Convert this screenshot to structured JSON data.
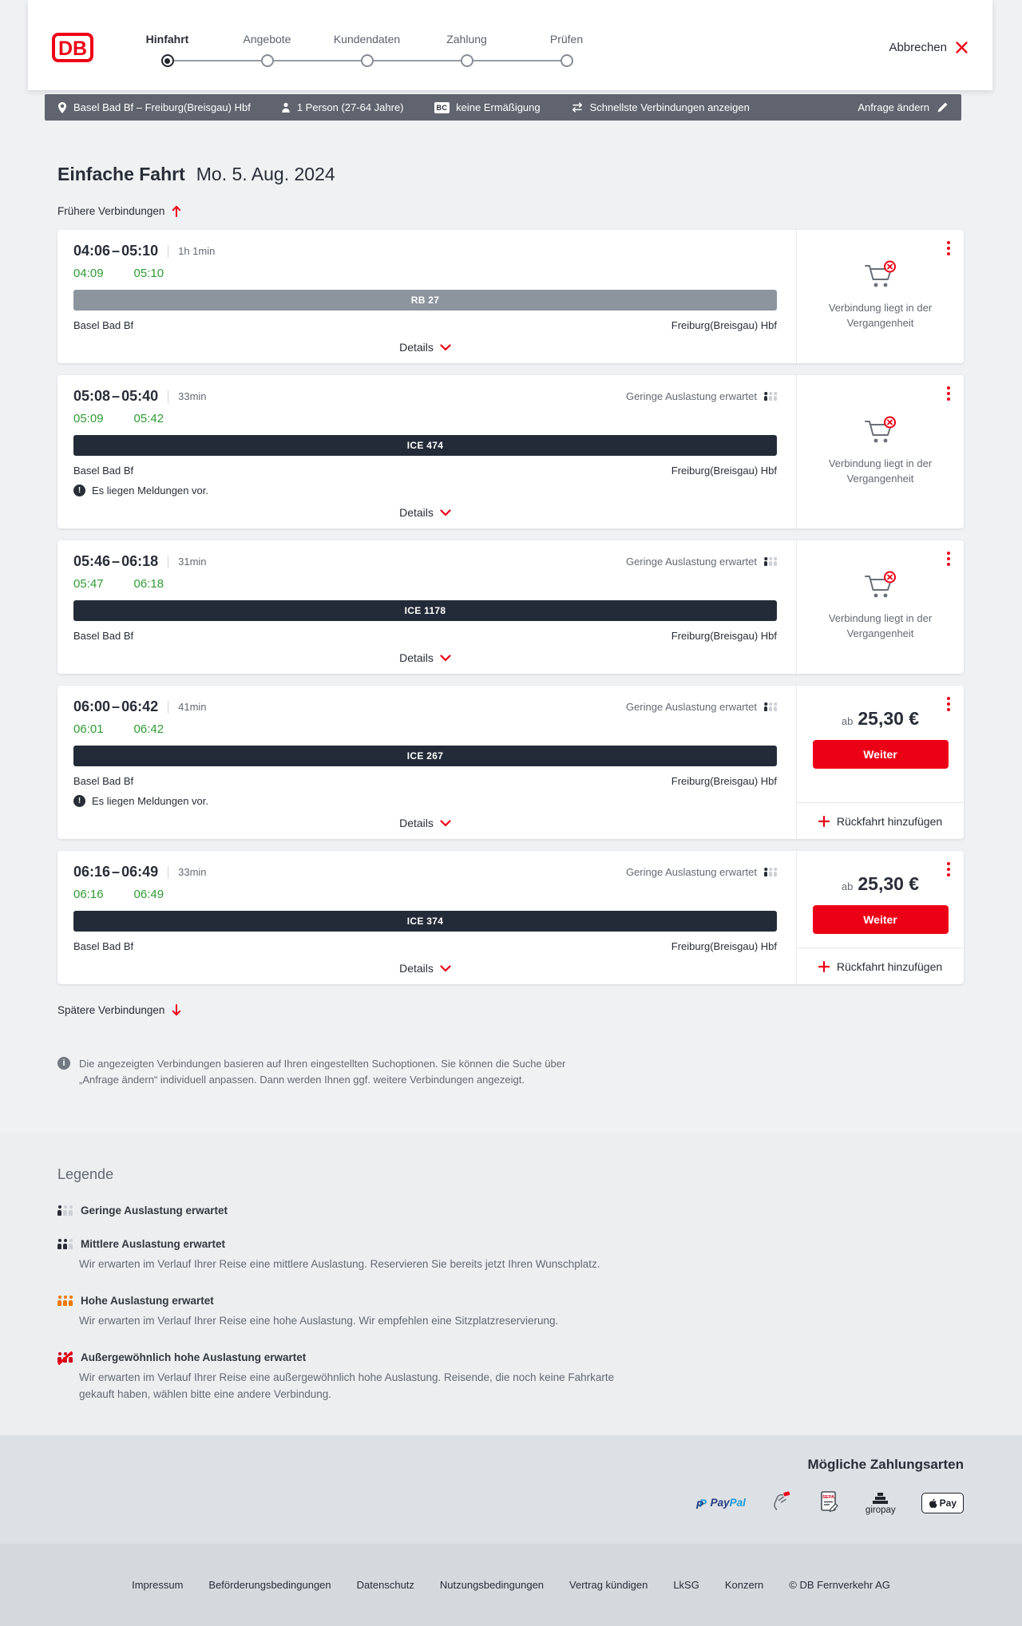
{
  "colors": {
    "brand_red": "#ec0016",
    "dark_text": "#282d37",
    "muted_text": "#646973",
    "realtime_green": "#2f9b33",
    "trip_bar_gray": "#60646e",
    "regional_train_badge": "#8c949e",
    "ice_train_badge": "#242b38",
    "occupancy_orange": "#f07800"
  },
  "icons": {
    "db-logo": "DB",
    "close": "✕",
    "location-pin": "📍",
    "traveler": "👤",
    "bahncard": "BC",
    "swap-arrows": "⇄",
    "edit-pencil": "✎",
    "arrow-up": "↑",
    "arrow-down": "↓",
    "chevron-down": "⌄",
    "kebab-menu": "⋮",
    "cart-crossed": "🛒✕",
    "warning": "!",
    "info": "i",
    "plus": "+"
  },
  "header": {
    "logo_text": "DB",
    "cancel_label": "Abbrechen",
    "steps": [
      {
        "label": "Hinfahrt",
        "active": true
      },
      {
        "label": "Angebote",
        "active": false
      },
      {
        "label": "Kundendaten",
        "active": false
      },
      {
        "label": "Zahlung",
        "active": false
      },
      {
        "label": "Prüfen",
        "active": false
      }
    ]
  },
  "trip_bar": {
    "route": "Basel Bad Bf – Freiburg(Breisgau) Hbf",
    "passengers": "1 Person (27-64 Jahre)",
    "bahncard_badge": "BC",
    "discount": "keine Ermäßigung",
    "speed": "Schnellste Verbindungen anzeigen",
    "edit": "Anfrage ändern"
  },
  "results": {
    "title": "Einfache Fahrt",
    "date": "Mo. 5. Aug. 2024",
    "earlier_label": "Frühere Verbindungen",
    "later_label": "Spätere Verbindungen",
    "times_separator": "–",
    "details_label": "Details",
    "weiter_label": "Weiter",
    "return_label": "Rückfahrt hinzufügen",
    "connections": [
      {
        "departure": "04:06",
        "arrival": "05:10",
        "duration": "1h 1min",
        "realtime_departure": "04:09",
        "realtime_arrival": "05:10",
        "train": "RB 27",
        "category": "RB",
        "origin": "Basel Bad Bf",
        "destination": "Freiburg(Breisgau) Hbf",
        "occupancy_label": null,
        "messages_note": null,
        "status_note": "Verbindung liegt in der Vergangenheit",
        "price": null
      },
      {
        "departure": "05:08",
        "arrival": "05:40",
        "duration": "33min",
        "realtime_departure": "05:09",
        "realtime_arrival": "05:42",
        "train": "ICE 474",
        "category": "ICE",
        "origin": "Basel Bad Bf",
        "destination": "Freiburg(Breisgau) Hbf",
        "occupancy_label": "Geringe Auslastung erwartet",
        "messages_note": "Es liegen Meldungen vor.",
        "status_note": "Verbindung liegt in der Vergangenheit",
        "price": null
      },
      {
        "departure": "05:46",
        "arrival": "06:18",
        "duration": "31min",
        "realtime_departure": "05:47",
        "realtime_arrival": "06:18",
        "train": "ICE 1178",
        "category": "ICE",
        "origin": "Basel Bad Bf",
        "destination": "Freiburg(Breisgau) Hbf",
        "occupancy_label": "Geringe Auslastung erwartet",
        "messages_note": null,
        "status_note": "Verbindung liegt in der Vergangenheit",
        "price": null
      },
      {
        "departure": "06:00",
        "arrival": "06:42",
        "duration": "41min",
        "realtime_departure": "06:01",
        "realtime_arrival": "06:42",
        "train": "ICE 267",
        "category": "ICE",
        "origin": "Basel Bad Bf",
        "destination": "Freiburg(Breisgau) Hbf",
        "occupancy_label": "Geringe Auslastung erwartet",
        "messages_note": "Es liegen Meldungen vor.",
        "status_note": null,
        "price": {
          "prefix": "ab",
          "amount": "25,30 €"
        }
      },
      {
        "departure": "06:16",
        "arrival": "06:49",
        "duration": "33min",
        "realtime_departure": "06:16",
        "realtime_arrival": "06:49",
        "train": "ICE 374",
        "category": "ICE",
        "origin": "Basel Bad Bf",
        "destination": "Freiburg(Breisgau) Hbf",
        "occupancy_label": "Geringe Auslastung erwartet",
        "messages_note": null,
        "status_note": null,
        "price": {
          "prefix": "ab",
          "amount": "25,30 €"
        }
      }
    ]
  },
  "info_note": "Die angezeigten Verbindungen basieren auf Ihren eingestellten Suchoptionen. Sie können die Suche über „Anfrage ändern“ individuell anpassen. Dann werden Ihnen ggf. weitere Verbindungen angezeigt.",
  "legend": {
    "title": "Legende",
    "items": [
      {
        "level": "low",
        "label": "Geringe Auslastung erwartet",
        "description": null
      },
      {
        "level": "medium",
        "label": "Mittlere Auslastung erwartet",
        "description": "Wir erwarten im Verlauf Ihrer Reise eine mittlere Auslastung. Reservieren Sie bereits jetzt Ihren Wunschplatz."
      },
      {
        "level": "high",
        "label": "Hohe Auslastung erwartet",
        "description": "Wir erwarten im Verlauf Ihrer Reise eine hohe Auslastung. Wir empfehlen eine Sitzplatzreservierung."
      },
      {
        "level": "very-high",
        "label": "Außergewöhnlich hohe Auslastung erwartet",
        "description": "Wir erwarten im Verlauf Ihrer Reise eine außergewöhnlich hohe Auslastung. Reisende, die noch keine Fahrkarte gekauft haben, wählen bitte eine andere Verbindung."
      }
    ]
  },
  "payments": {
    "title": "Mögliche Zahlungsarten",
    "methods": [
      "paypal",
      "hand-card",
      "sepa-document",
      "giropay",
      "apple-pay"
    ],
    "logo_texts": {
      "paypal_1": "Pay",
      "paypal_2": "Pal",
      "sepa": "SEPA",
      "giropay": "giropay",
      "applepay": "Pay"
    }
  },
  "footer": {
    "links": [
      "Impressum",
      "Beförderungsbedingungen",
      "Datenschutz",
      "Nutzungsbedingungen",
      "Vertrag kündigen",
      "LkSG",
      "Konzern"
    ],
    "copyright": "© DB Fernverkehr AG"
  }
}
